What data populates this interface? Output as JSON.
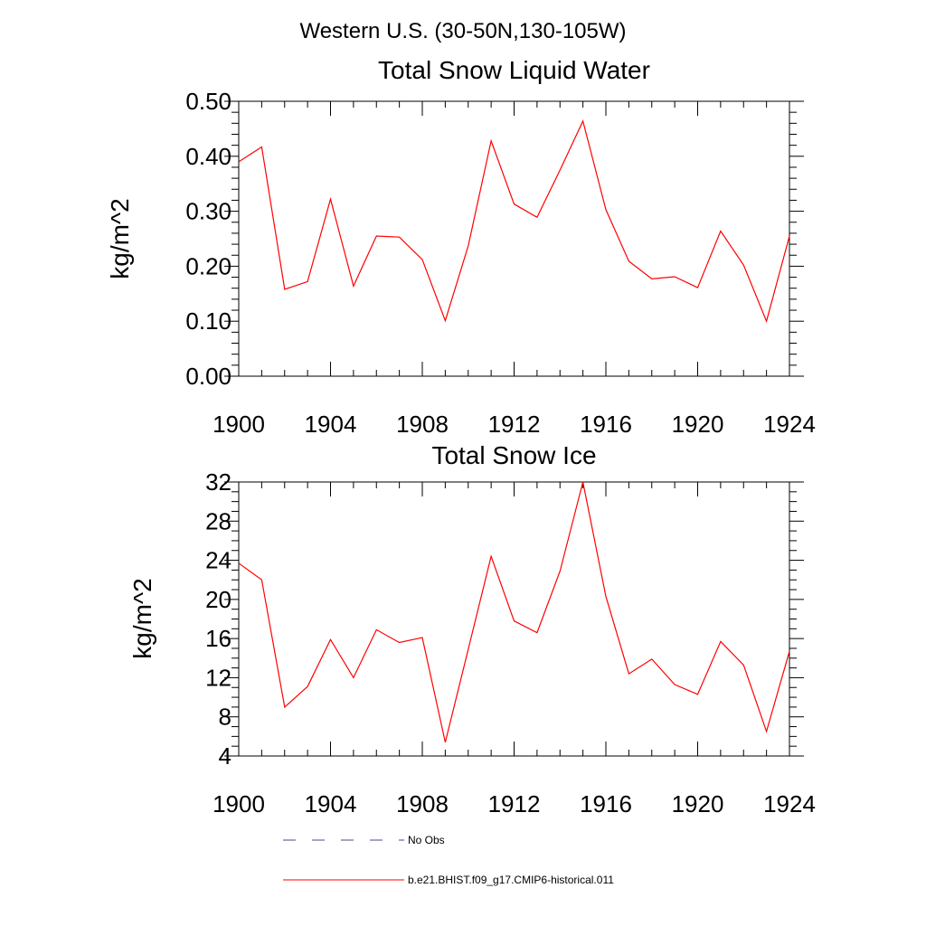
{
  "figure": {
    "title": "Western U.S. (30-50N,130-105W)"
  },
  "chart_data": [
    {
      "type": "line",
      "title": "Total Snow Liquid Water",
      "xlabel": "",
      "ylabel": "kg/m^2",
      "xlim": [
        1900,
        1924
      ],
      "ylim": [
        0,
        0.5
      ],
      "xticks": [
        1900,
        1904,
        1908,
        1912,
        1916,
        1920,
        1924
      ],
      "xtick_labels": [
        "1900",
        "1904",
        "1908",
        "1912",
        "1916",
        "1920",
        "1924"
      ],
      "yticks": [
        0,
        0.1,
        0.2,
        0.3,
        0.4,
        0.5
      ],
      "ytick_labels": [
        "0.00",
        "0.10",
        "0.20",
        "0.30",
        "0.40",
        "0.50"
      ],
      "grid": false,
      "x": [
        1900,
        1901,
        1902,
        1903,
        1904,
        1905,
        1906,
        1907,
        1908,
        1909,
        1910,
        1911,
        1912,
        1913,
        1914,
        1915,
        1916,
        1917,
        1918,
        1919,
        1920,
        1921,
        1922,
        1923,
        1924
      ],
      "series": [
        {
          "name": "b.e21.BHIST.f09_g17.CMIP6-historical.011",
          "color": "#ff0000",
          "values": [
            0.39,
            0.417,
            0.158,
            0.172,
            0.322,
            0.164,
            0.255,
            0.253,
            0.212,
            0.101,
            0.237,
            0.428,
            0.313,
            0.289,
            0.375,
            0.464,
            0.303,
            0.209,
            0.177,
            0.181,
            0.161,
            0.264,
            0.202,
            0.1,
            0.255
          ]
        }
      ]
    },
    {
      "type": "line",
      "title": "Total Snow Ice",
      "xlabel": "",
      "ylabel": "kg/m^2",
      "xlim": [
        1900,
        1924
      ],
      "ylim": [
        4,
        32
      ],
      "xticks": [
        1900,
        1904,
        1908,
        1912,
        1916,
        1920,
        1924
      ],
      "xtick_labels": [
        "1900",
        "1904",
        "1908",
        "1912",
        "1916",
        "1920",
        "1924"
      ],
      "yticks": [
        4,
        8,
        12,
        16,
        20,
        24,
        28,
        32
      ],
      "ytick_labels": [
        "4",
        "8",
        "12",
        "16",
        "20",
        "24",
        "28",
        "32"
      ],
      "grid": false,
      "x": [
        1900,
        1901,
        1902,
        1903,
        1904,
        1905,
        1906,
        1907,
        1908,
        1909,
        1910,
        1911,
        1912,
        1913,
        1914,
        1915,
        1916,
        1917,
        1918,
        1919,
        1920,
        1921,
        1922,
        1923,
        1924
      ],
      "series": [
        {
          "name": "b.e21.BHIST.f09_g17.CMIP6-historical.011",
          "color": "#ff0000",
          "values": [
            23.7,
            22.0,
            9.0,
            11.1,
            15.9,
            12.0,
            16.9,
            15.6,
            16.1,
            5.4,
            14.9,
            24.4,
            17.8,
            16.6,
            22.9,
            32.0,
            20.3,
            12.4,
            13.9,
            11.3,
            10.3,
            15.7,
            13.3,
            6.5,
            14.7
          ]
        }
      ]
    }
  ],
  "legend": {
    "items": [
      {
        "label": "No Obs",
        "style": "dashed",
        "color": "#4a4a8a"
      },
      {
        "label": "b.e21.BHIST.f09_g17.CMIP6-historical.011",
        "style": "solid",
        "color": "#ff0000"
      }
    ]
  }
}
